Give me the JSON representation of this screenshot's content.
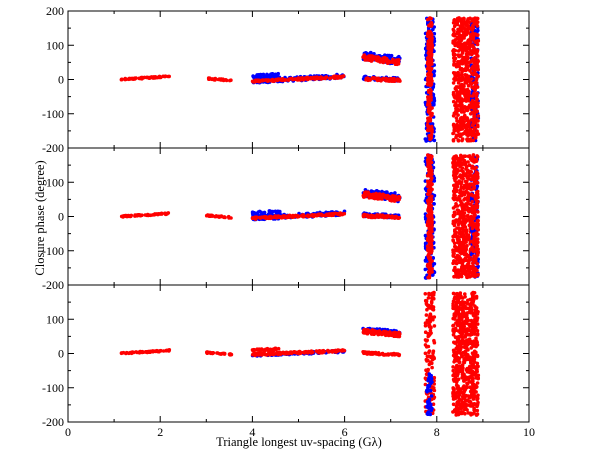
{
  "chart_data": {
    "type": "scatter",
    "xlabel": "Triangle longest uv-spacing (Gλ)",
    "ylabel": "Closure phase (degree)",
    "xlim": [
      0,
      10
    ],
    "ylim": [
      -200,
      200
    ],
    "x_ticks": [
      "0",
      "2",
      "4",
      "6",
      "8",
      "10"
    ],
    "y_ticks": [
      "200",
      "100",
      "0",
      "-100",
      "-200"
    ],
    "grid": false,
    "legend": "none",
    "colors": {
      "series_a": "#0000ff",
      "series_b": "#ff0000"
    },
    "panels": [
      {
        "index": 1,
        "clusters": [
          {
            "x": [
              1.15,
              2.2
            ],
            "y": [
              0,
              9
            ],
            "spread": 2,
            "color": "series_b",
            "density": 60,
            "kind": "band"
          },
          {
            "x": [
              3.0,
              3.55
            ],
            "y": [
              3,
              -3
            ],
            "spread": 2,
            "color": "series_b",
            "density": 30,
            "kind": "band"
          },
          {
            "x": [
              4.0,
              4.6
            ],
            "y": [
              8,
              12
            ],
            "spread": 6,
            "color": "series_a",
            "density": 40,
            "kind": "band"
          },
          {
            "x": [
              4.0,
              6.0
            ],
            "y": [
              -5,
              10
            ],
            "spread": 6,
            "color": "series_a",
            "density": 120,
            "kind": "band"
          },
          {
            "x": [
              4.0,
              6.0
            ],
            "y": [
              -5,
              8
            ],
            "spread": 3,
            "color": "series_b",
            "density": 140,
            "kind": "band"
          },
          {
            "x": [
              6.4,
              7.2
            ],
            "y": [
              70,
              55
            ],
            "spread": 12,
            "color": "series_a",
            "density": 90,
            "kind": "band"
          },
          {
            "x": [
              6.4,
              7.2
            ],
            "y": [
              65,
              50
            ],
            "spread": 8,
            "color": "series_b",
            "density": 100,
            "kind": "band"
          },
          {
            "x": [
              6.4,
              7.2
            ],
            "y": [
              5,
              0
            ],
            "spread": 5,
            "color": "series_a",
            "density": 60,
            "kind": "band"
          },
          {
            "x": [
              6.4,
              7.2
            ],
            "y": [
              2,
              -2
            ],
            "spread": 4,
            "color": "series_b",
            "density": 60,
            "kind": "band"
          },
          {
            "x": [
              7.75,
              7.95
            ],
            "y": [
              -180,
              180
            ],
            "spread": 0,
            "color": "series_a",
            "density": 160,
            "kind": "column"
          },
          {
            "x": [
              7.8,
              7.9
            ],
            "y": [
              -180,
              180
            ],
            "spread": 0,
            "color": "series_b",
            "density": 200,
            "kind": "column"
          },
          {
            "x": [
              8.35,
              8.55
            ],
            "y": [
              -180,
              180
            ],
            "spread": 0,
            "color": "series_b",
            "density": 240,
            "kind": "column"
          },
          {
            "x": [
              8.55,
              8.75
            ],
            "y": [
              -180,
              180
            ],
            "spread": 0,
            "color": "series_b",
            "density": 240,
            "kind": "column"
          },
          {
            "x": [
              8.75,
              8.9
            ],
            "y": [
              -180,
              180
            ],
            "spread": 0,
            "color": "series_a",
            "density": 120,
            "kind": "column"
          },
          {
            "x": [
              8.75,
              8.9
            ],
            "y": [
              -180,
              180
            ],
            "spread": 0,
            "color": "series_b",
            "density": 180,
            "kind": "column"
          }
        ]
      },
      {
        "index": 2,
        "clusters": [
          {
            "x": [
              1.15,
              2.2
            ],
            "y": [
              0,
              9
            ],
            "spread": 2,
            "color": "series_b",
            "density": 60,
            "kind": "band"
          },
          {
            "x": [
              3.0,
              3.55
            ],
            "y": [
              3,
              -3
            ],
            "spread": 2,
            "color": "series_b",
            "density": 30,
            "kind": "band"
          },
          {
            "x": [
              4.0,
              4.6
            ],
            "y": [
              8,
              12
            ],
            "spread": 6,
            "color": "series_a",
            "density": 40,
            "kind": "band"
          },
          {
            "x": [
              4.0,
              6.0
            ],
            "y": [
              -5,
              10
            ],
            "spread": 6,
            "color": "series_a",
            "density": 120,
            "kind": "band"
          },
          {
            "x": [
              4.0,
              6.0
            ],
            "y": [
              -5,
              8
            ],
            "spread": 3,
            "color": "series_b",
            "density": 140,
            "kind": "band"
          },
          {
            "x": [
              6.4,
              7.2
            ],
            "y": [
              70,
              55
            ],
            "spread": 12,
            "color": "series_a",
            "density": 90,
            "kind": "band"
          },
          {
            "x": [
              6.4,
              7.2
            ],
            "y": [
              65,
              50
            ],
            "spread": 8,
            "color": "series_b",
            "density": 100,
            "kind": "band"
          },
          {
            "x": [
              6.4,
              7.2
            ],
            "y": [
              5,
              0
            ],
            "spread": 5,
            "color": "series_a",
            "density": 60,
            "kind": "band"
          },
          {
            "x": [
              6.4,
              7.2
            ],
            "y": [
              2,
              -2
            ],
            "spread": 4,
            "color": "series_b",
            "density": 60,
            "kind": "band"
          },
          {
            "x": [
              7.75,
              7.95
            ],
            "y": [
              -180,
              180
            ],
            "spread": 0,
            "color": "series_a",
            "density": 160,
            "kind": "column"
          },
          {
            "x": [
              7.8,
              7.9
            ],
            "y": [
              -180,
              180
            ],
            "spread": 0,
            "color": "series_b",
            "density": 200,
            "kind": "column"
          },
          {
            "x": [
              8.35,
              8.55
            ],
            "y": [
              -180,
              180
            ],
            "spread": 0,
            "color": "series_b",
            "density": 240,
            "kind": "column"
          },
          {
            "x": [
              8.55,
              8.75
            ],
            "y": [
              -180,
              180
            ],
            "spread": 0,
            "color": "series_b",
            "density": 240,
            "kind": "column"
          },
          {
            "x": [
              8.75,
              8.9
            ],
            "y": [
              -180,
              180
            ],
            "spread": 0,
            "color": "series_a",
            "density": 120,
            "kind": "column"
          },
          {
            "x": [
              8.75,
              8.9
            ],
            "y": [
              -180,
              180
            ],
            "spread": 0,
            "color": "series_b",
            "density": 180,
            "kind": "column"
          }
        ]
      },
      {
        "index": 3,
        "clusters": [
          {
            "x": [
              1.15,
              2.2
            ],
            "y": [
              0,
              9
            ],
            "spread": 2,
            "color": "series_b",
            "density": 60,
            "kind": "band"
          },
          {
            "x": [
              3.0,
              3.55
            ],
            "y": [
              3,
              -3
            ],
            "spread": 2,
            "color": "series_b",
            "density": 30,
            "kind": "band"
          },
          {
            "x": [
              4.0,
              4.6
            ],
            "y": [
              8,
              12
            ],
            "spread": 4,
            "color": "series_b",
            "density": 40,
            "kind": "band"
          },
          {
            "x": [
              4.0,
              6.0
            ],
            "y": [
              -5,
              6
            ],
            "spread": 3,
            "color": "series_a",
            "density": 80,
            "kind": "band"
          },
          {
            "x": [
              4.0,
              6.0
            ],
            "y": [
              -3,
              8
            ],
            "spread": 3,
            "color": "series_b",
            "density": 140,
            "kind": "band"
          },
          {
            "x": [
              6.4,
              7.2
            ],
            "y": [
              70,
              60
            ],
            "spread": 6,
            "color": "series_a",
            "density": 60,
            "kind": "band"
          },
          {
            "x": [
              6.4,
              7.2
            ],
            "y": [
              65,
              55
            ],
            "spread": 6,
            "color": "series_b",
            "density": 100,
            "kind": "band"
          },
          {
            "x": [
              6.4,
              7.2
            ],
            "y": [
              2,
              -4
            ],
            "spread": 3,
            "color": "series_b",
            "density": 60,
            "kind": "band"
          },
          {
            "x": [
              7.75,
              7.95
            ],
            "y": [
              -180,
              180
            ],
            "spread": 0,
            "color": "series_b",
            "density": 150,
            "kind": "column"
          },
          {
            "x": [
              7.78,
              7.9
            ],
            "y": [
              -180,
              -60
            ],
            "spread": 0,
            "color": "series_a",
            "density": 40,
            "kind": "column"
          },
          {
            "x": [
              8.35,
              8.55
            ],
            "y": [
              -180,
              180
            ],
            "spread": 0,
            "color": "series_b",
            "density": 240,
            "kind": "column"
          },
          {
            "x": [
              8.55,
              8.75
            ],
            "y": [
              -180,
              180
            ],
            "spread": 0,
            "color": "series_b",
            "density": 220,
            "kind": "column"
          },
          {
            "x": [
              8.75,
              8.9
            ],
            "y": [
              -180,
              180
            ],
            "spread": 0,
            "color": "series_b",
            "density": 180,
            "kind": "column"
          }
        ]
      }
    ]
  }
}
